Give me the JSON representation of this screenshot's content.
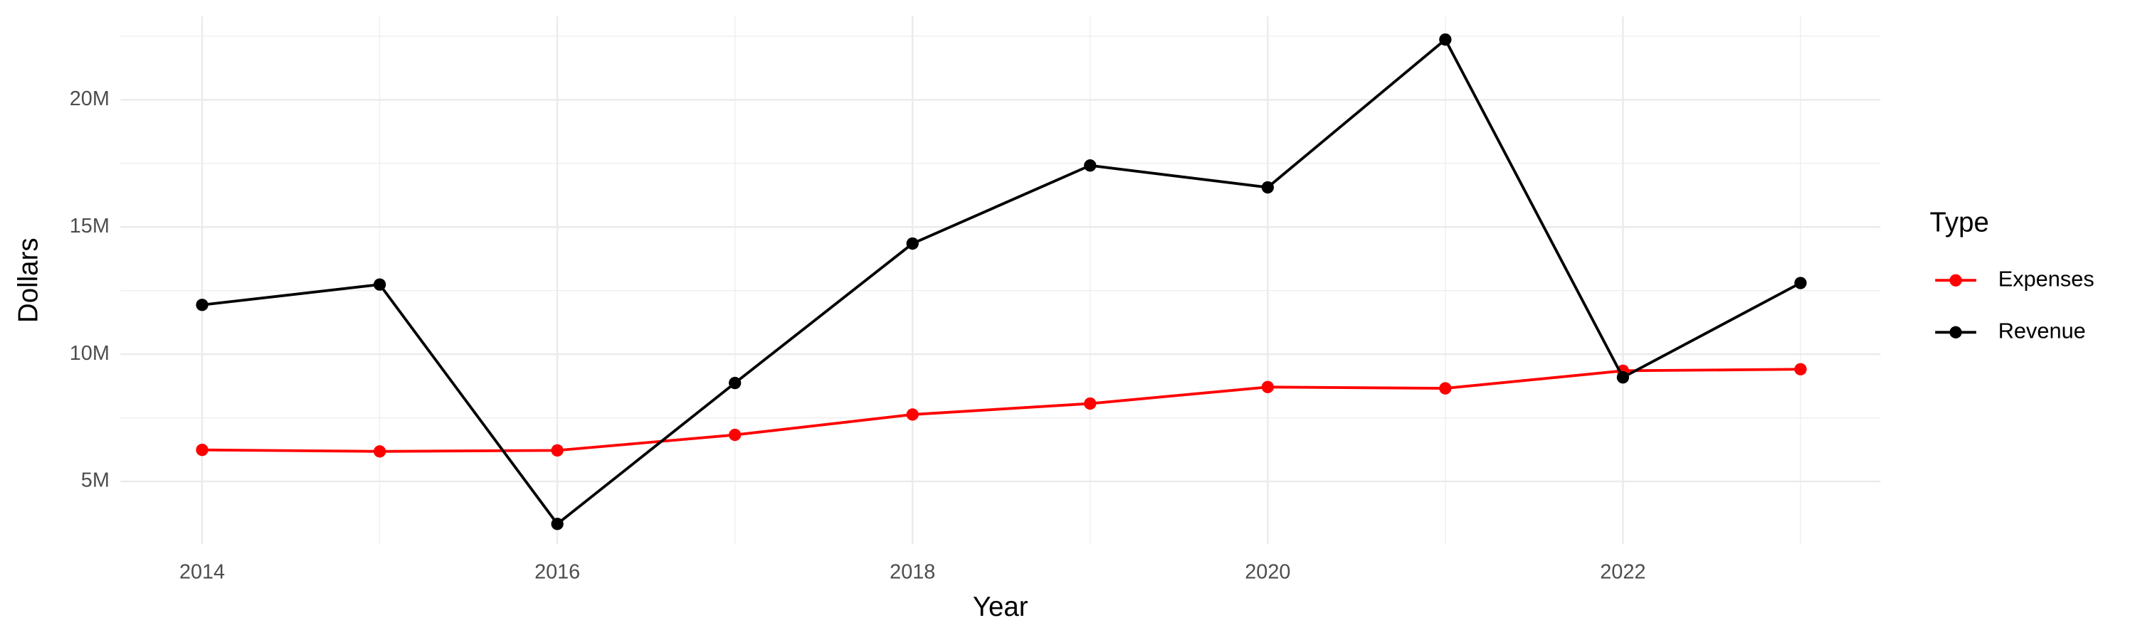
{
  "chart_data": {
    "type": "line",
    "x_label": "Year",
    "y_label": "Dollars",
    "x": [
      2014,
      2015,
      2016,
      2017,
      2018,
      2019,
      2020,
      2021,
      2022,
      2023
    ],
    "series": [
      {
        "name": "Expenses",
        "color": "#ff0000",
        "values": [
          6240000,
          6180000,
          6220000,
          6830000,
          7630000,
          8060000,
          8710000,
          8660000,
          9350000,
          9410000
        ]
      },
      {
        "name": "Revenue",
        "color": "#000000",
        "values": [
          11940000,
          12740000,
          3330000,
          8870000,
          14350000,
          17420000,
          16560000,
          22370000,
          9090000,
          12800000
        ]
      }
    ],
    "xlim": [
      2013.54,
      2023.45
    ],
    "xticks": [
      2014,
      2016,
      2018,
      2020,
      2022
    ],
    "ylim": [
      2530000,
      23280000
    ],
    "yticks": [
      {
        "value": 5000000,
        "label": "5M"
      },
      {
        "value": 10000000,
        "label": "10M"
      },
      {
        "value": 15000000,
        "label": "15M"
      },
      {
        "value": 20000000,
        "label": "20M"
      }
    ],
    "grid": true,
    "legend_title": "Type",
    "legend_position": "right"
  }
}
